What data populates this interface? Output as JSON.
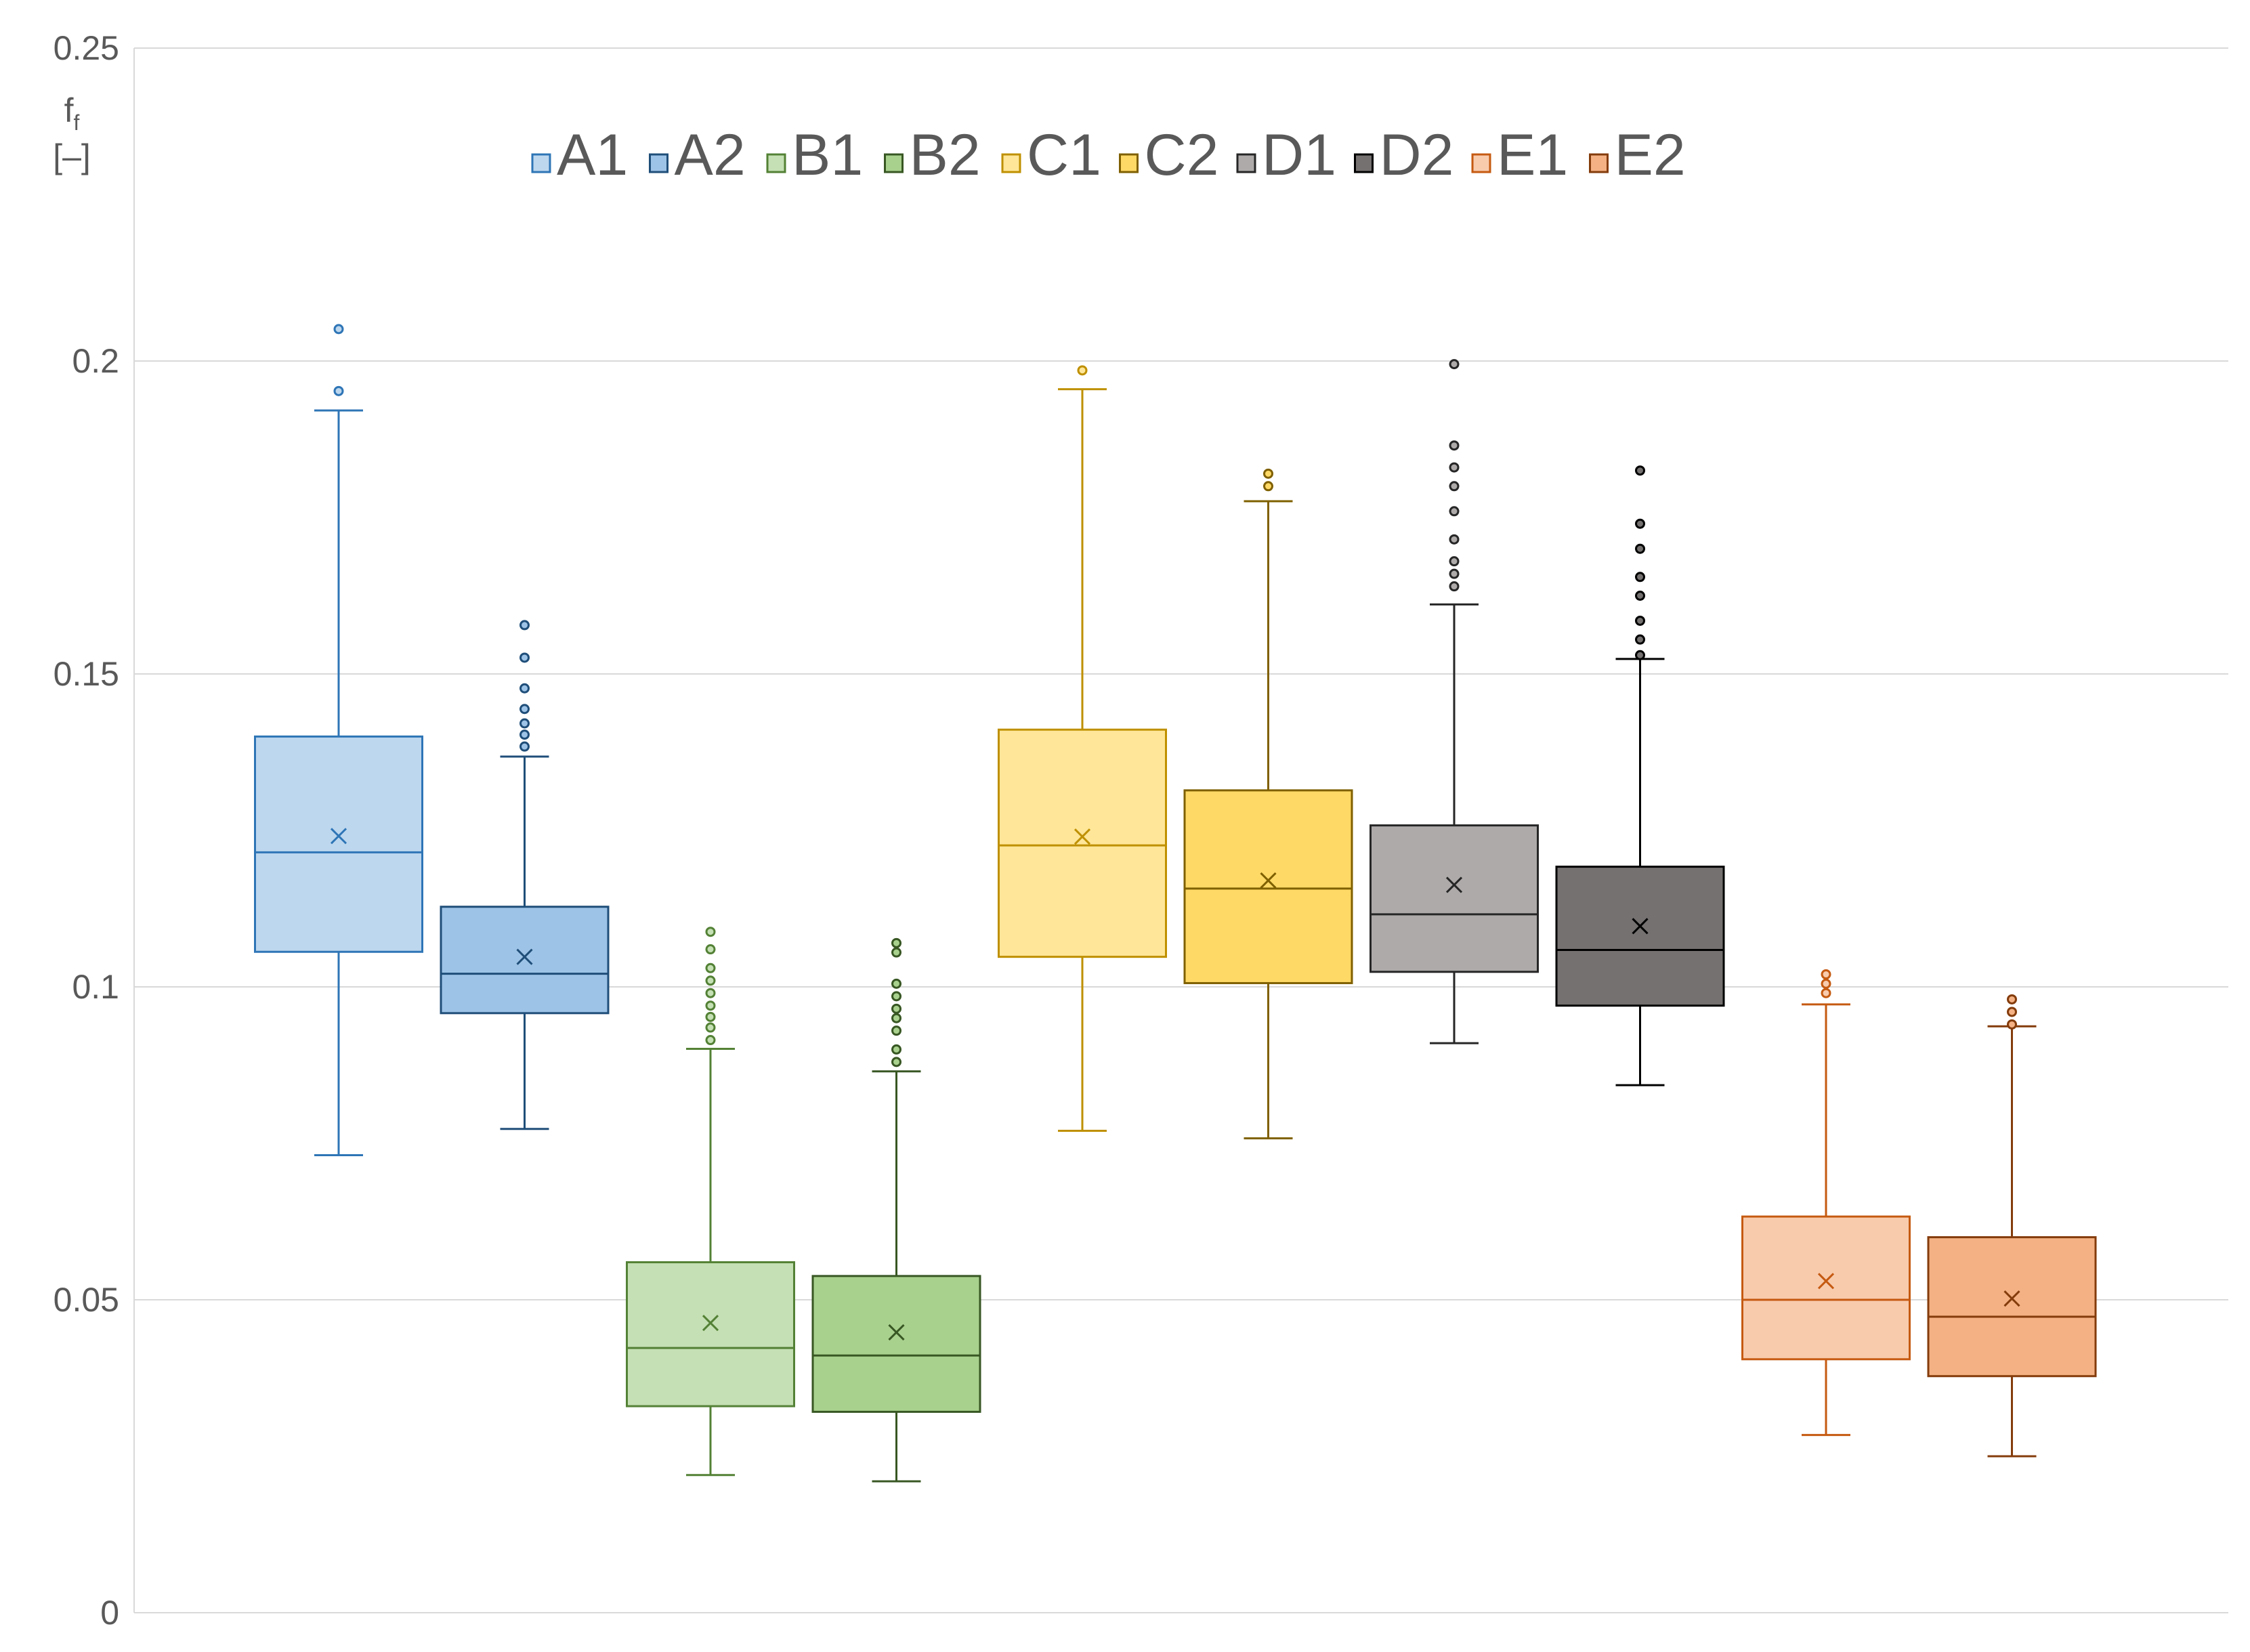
{
  "chart_data": {
    "type": "box",
    "title": "",
    "ylabel_line1": "f",
    "ylabel_sub": "f",
    "ylabel_line2": "[–]",
    "ylim": [
      0,
      0.25
    ],
    "yticks": [
      {
        "value": 0,
        "label": "0"
      },
      {
        "value": 0.05,
        "label": "0.05"
      },
      {
        "value": 0.1,
        "label": "0.1"
      },
      {
        "value": 0.15,
        "label": "0.15"
      },
      {
        "value": 0.2,
        "label": "0.2"
      },
      {
        "value": 0.25,
        "label": "0.25"
      }
    ],
    "grid": true,
    "legend_position": "top",
    "series": [
      {
        "name": "A1",
        "fill": "#bdd7ee",
        "stroke": "#2e75b6",
        "min": 0.0731,
        "q1": 0.1056,
        "median": 0.1215,
        "q3": 0.14,
        "max": 0.1921,
        "mean": 0.1241,
        "outliers": [
          0.1952,
          0.2051
        ]
      },
      {
        "name": "A2",
        "fill": "#9dc3e6",
        "stroke": "#1f4e79",
        "min": 0.0773,
        "q1": 0.0958,
        "median": 0.1021,
        "q3": 0.1128,
        "max": 0.1368,
        "mean": 0.1048,
        "outliers": [
          0.1384,
          0.1403,
          0.1421,
          0.1444,
          0.1477,
          0.1526,
          0.1578
        ]
      },
      {
        "name": "B1",
        "fill": "#c5e0b4",
        "stroke": "#538135",
        "min": 0.022,
        "q1": 0.033,
        "median": 0.0423,
        "q3": 0.056,
        "max": 0.0901,
        "mean": 0.0463,
        "outliers": [
          0.0915,
          0.0935,
          0.0952,
          0.097,
          0.099,
          0.101,
          0.103,
          0.106,
          0.1088
        ]
      },
      {
        "name": "B2",
        "fill": "#a9d18e",
        "stroke": "#385723",
        "min": 0.021,
        "q1": 0.0321,
        "median": 0.0411,
        "q3": 0.0538,
        "max": 0.0865,
        "mean": 0.0448,
        "outliers": [
          0.088,
          0.09,
          0.093,
          0.095,
          0.0965,
          0.0985,
          0.1005,
          0.1055,
          0.107
        ]
      },
      {
        "name": "C1",
        "fill": "#ffe699",
        "stroke": "#bf9000",
        "min": 0.077,
        "q1": 0.1048,
        "median": 0.1226,
        "q3": 0.1411,
        "max": 0.1955,
        "mean": 0.124,
        "outliers": [
          0.1985
        ]
      },
      {
        "name": "C2",
        "fill": "#ffd966",
        "stroke": "#7f6000",
        "min": 0.0758,
        "q1": 0.1006,
        "median": 0.1157,
        "q3": 0.1314,
        "max": 0.1776,
        "mean": 0.117,
        "outliers": [
          0.18,
          0.182
        ]
      },
      {
        "name": "D1",
        "fill": "#aeaaaa",
        "stroke": "#262626",
        "min": 0.091,
        "q1": 0.1024,
        "median": 0.1116,
        "q3": 0.1258,
        "max": 0.1611,
        "mean": 0.1163,
        "outliers": [
          0.164,
          0.166,
          0.168,
          0.1715,
          0.176,
          0.18,
          0.183,
          0.1865,
          0.1995
        ]
      },
      {
        "name": "D2",
        "fill": "#757171",
        "stroke": "#000000",
        "min": 0.0843,
        "q1": 0.097,
        "median": 0.1059,
        "q3": 0.1192,
        "max": 0.1524,
        "mean": 0.1097,
        "outliers": [
          0.153,
          0.1555,
          0.1585,
          0.1625,
          0.1655,
          0.17,
          0.174,
          0.1825
        ]
      },
      {
        "name": "E1",
        "fill": "#f8cbad",
        "stroke": "#c55a11",
        "min": 0.0284,
        "q1": 0.0405,
        "median": 0.05,
        "q3": 0.0633,
        "max": 0.0972,
        "mean": 0.053,
        "outliers": [
          0.099,
          0.1005,
          0.102
        ]
      },
      {
        "name": "E2",
        "fill": "#f4b183",
        "stroke": "#843c0c",
        "min": 0.025,
        "q1": 0.0378,
        "median": 0.0473,
        "q3": 0.06,
        "max": 0.0937,
        "mean": 0.0502,
        "outliers": [
          0.094,
          0.096,
          0.098
        ]
      }
    ]
  }
}
